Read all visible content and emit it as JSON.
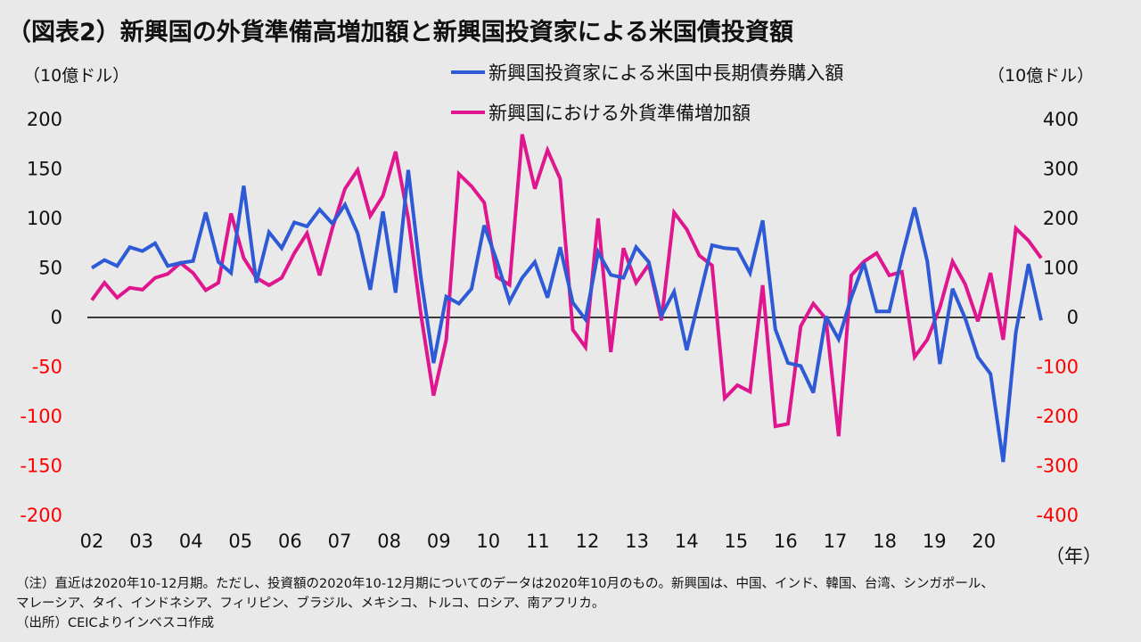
{
  "title": "（図表2）新興国の外貨準備高増加額と新興国投資家による米国債投資額",
  "unit_left": "（10億ドル）",
  "unit_right": "（10億ドル）",
  "year_suffix": "（年）",
  "notes": {
    "line1": "（注）直近は2020年10-12月期。ただし、投資額の2020年10-12月期についてのデータは2020年10月のもの。新興国は、中国、インド、韓国、台湾、シンガポール、",
    "line2": "マレーシア、タイ、インドネシア、フィリピン、ブラジル、メキシコ、トルコ、ロシア、南アフリカ。",
    "source": "（出所）CEICよりインベスコ作成"
  },
  "colors": {
    "blue": "#2e5ad6",
    "magenta": "#e0168e",
    "neg_red": "#ff0000",
    "background": "#e9e9e9"
  },
  "chart_data": {
    "type": "line",
    "x_tick_labels": [
      "02",
      "03",
      "04",
      "05",
      "06",
      "07",
      "08",
      "09",
      "10",
      "11",
      "12",
      "13",
      "14",
      "15",
      "16",
      "17",
      "18",
      "19",
      "20"
    ],
    "left_axis": {
      "ylim": [
        -200,
        200
      ],
      "ticks": [
        "200",
        "150",
        "100",
        "50",
        "0",
        "-50",
        "-100",
        "-150",
        "-200"
      ]
    },
    "right_axis": {
      "ylim": [
        -400,
        400
      ],
      "ticks": [
        "400",
        "300",
        "200",
        "100",
        "0",
        "-100",
        "-200",
        "-300",
        "-400"
      ]
    },
    "legend_position": "top-center",
    "grid": false,
    "series": [
      {
        "name": "新興国投資家による米国中長期債券購入額",
        "axis": "left",
        "color": "#2e5ad6",
        "values": [
          50,
          58,
          52,
          71,
          67,
          75,
          52,
          55,
          57,
          106,
          56,
          45,
          133,
          35,
          86,
          70,
          96,
          92,
          109,
          95,
          114,
          85,
          28,
          107,
          25,
          149,
          40,
          -46,
          21,
          14,
          29,
          93,
          57,
          16,
          40,
          56,
          20,
          71,
          15,
          -2,
          66,
          43,
          40,
          71,
          56,
          2,
          26,
          -33,
          20,
          73,
          70,
          69,
          45,
          98,
          -12,
          -46,
          -49,
          -76,
          1,
          -22,
          20,
          55,
          6,
          6,
          61,
          111,
          57,
          -47,
          29,
          -1,
          -40,
          -57,
          -146,
          -15,
          54,
          -3
        ]
      },
      {
        "name": "新興国における外貨準備増加額",
        "axis": "right",
        "color": "#e0168e",
        "values": [
          35,
          70,
          40,
          60,
          56,
          80,
          88,
          110,
          90,
          55,
          70,
          210,
          120,
          80,
          65,
          80,
          130,
          170,
          85,
          180,
          260,
          298,
          205,
          246,
          335,
          200,
          6,
          -158,
          -45,
          290,
          265,
          232,
          82,
          66,
          370,
          260,
          338,
          280,
          -25,
          -60,
          200,
          -70,
          140,
          70,
          107,
          -6,
          212,
          178,
          125,
          105,
          -163,
          -137,
          -150,
          65,
          -220,
          -215,
          -18,
          28,
          -3,
          -240,
          85,
          113,
          130,
          85,
          92,
          -80,
          -45,
          20,
          113,
          67,
          -8,
          90,
          -45,
          180,
          155,
          120
        ]
      }
    ]
  }
}
